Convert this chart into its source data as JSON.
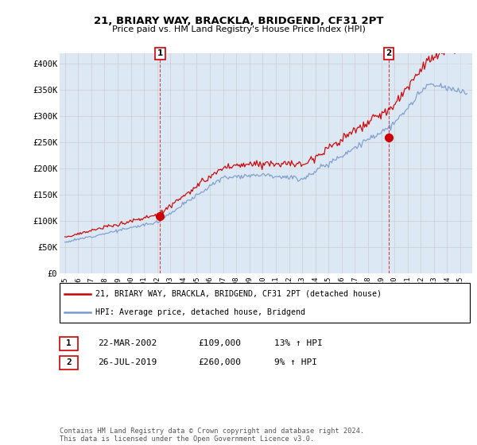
{
  "title": "21, BRIARY WAY, BRACKLA, BRIDGEND, CF31 2PT",
  "subtitle": "Price paid vs. HM Land Registry's House Price Index (HPI)",
  "legend_line1": "21, BRIARY WAY, BRACKLA, BRIDGEND, CF31 2PT (detached house)",
  "legend_line2": "HPI: Average price, detached house, Bridgend",
  "annotation1_label": "1",
  "annotation1_date": "22-MAR-2002",
  "annotation1_price": "£109,000",
  "annotation1_hpi": "13% ↑ HPI",
  "annotation2_label": "2",
  "annotation2_date": "26-JUL-2019",
  "annotation2_price": "£260,000",
  "annotation2_hpi": "9% ↑ HPI",
  "footer": "Contains HM Land Registry data © Crown copyright and database right 2024.\nThis data is licensed under the Open Government Licence v3.0.",
  "red_color": "#cc0000",
  "blue_color": "#7799cc",
  "blue_fill_color": "#dde8f5",
  "background_color": "#ffffff",
  "grid_color": "#cccccc",
  "ylim": [
    0,
    420000
  ],
  "yticks": [
    0,
    50000,
    100000,
    150000,
    200000,
    250000,
    300000,
    350000,
    400000
  ],
  "ytick_labels": [
    "£0",
    "£50K",
    "£100K",
    "£150K",
    "£200K",
    "£250K",
    "£300K",
    "£350K",
    "£400K"
  ],
  "year_start": 1995,
  "year_end": 2025,
  "sale1_year": 2002.22,
  "sale1_price": 109000,
  "sale2_year": 2019.57,
  "sale2_price": 260000,
  "xlim_left": 1994.6,
  "xlim_right": 2025.9
}
